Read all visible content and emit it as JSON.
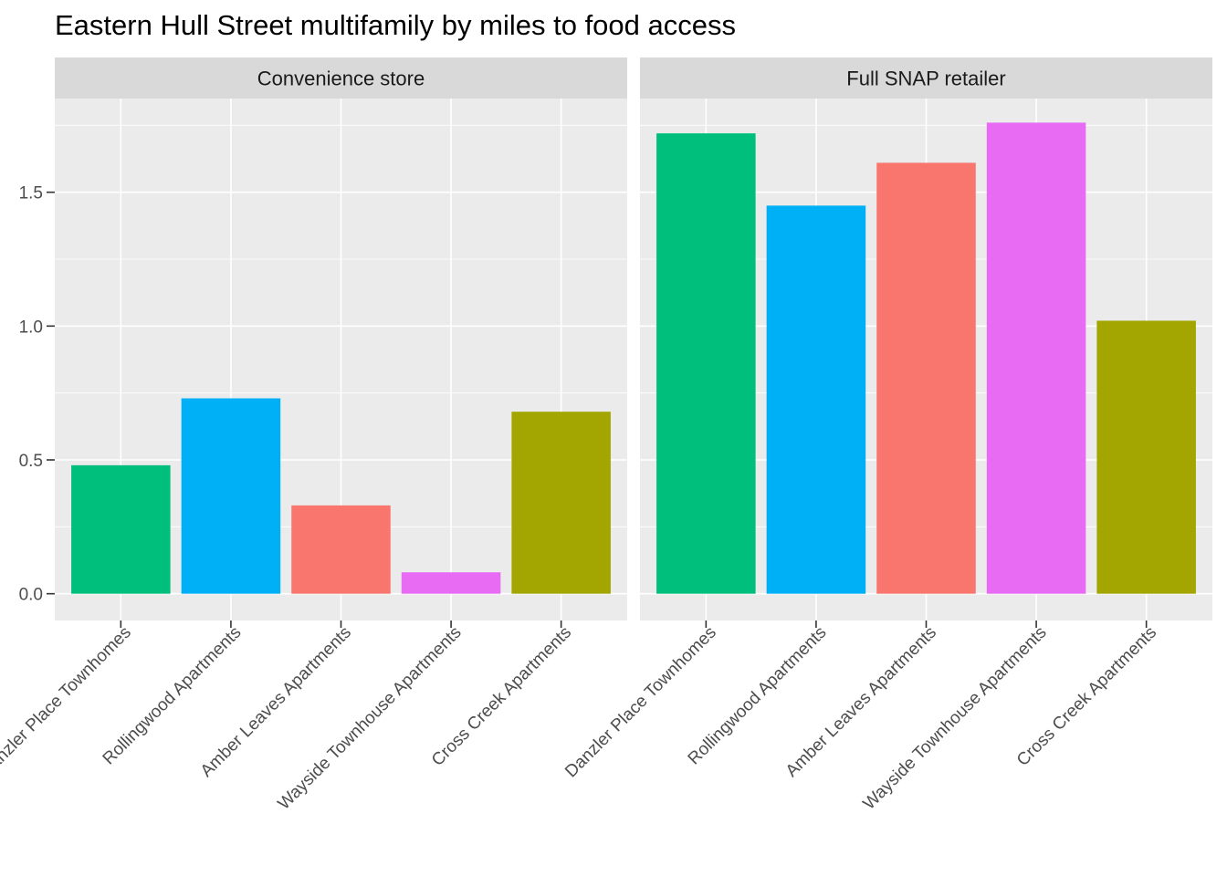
{
  "title": "Eastern Hull Street multifamily by miles to food access",
  "chart_data": [
    {
      "type": "bar",
      "panel": "Convenience store",
      "categories": [
        "Danzler Place Townhomes",
        "Rollingwood Apartments",
        "Amber Leaves Apartments",
        "Wayside Townhouse Apartments",
        "Cross Creek Apartments"
      ],
      "values": [
        0.48,
        0.73,
        0.33,
        0.08,
        0.68
      ],
      "ylim": [
        -0.1,
        1.85
      ],
      "yticks": [
        0.0,
        0.5,
        1.0,
        1.5
      ],
      "ytick_labels": [
        "0.0",
        "0.5",
        "1.0",
        "1.5"
      ],
      "xlabel": "",
      "ylabel": ""
    },
    {
      "type": "bar",
      "panel": "Full SNAP retailer",
      "categories": [
        "Danzler Place Townhomes",
        "Rollingwood Apartments",
        "Amber Leaves Apartments",
        "Wayside Townhouse Apartments",
        "Cross Creek Apartments"
      ],
      "values": [
        1.72,
        1.45,
        1.61,
        1.76,
        1.02
      ],
      "ylim": [
        -0.1,
        1.85
      ],
      "yticks": [
        0.0,
        0.5,
        1.0,
        1.5
      ],
      "ytick_labels": [
        "0.0",
        "0.5",
        "1.0",
        "1.5"
      ],
      "xlabel": "",
      "ylabel": ""
    }
  ],
  "colors": {
    "Danzler Place Townhomes": "#00BF7D",
    "Rollingwood Apartments": "#00B0F6",
    "Amber Leaves Apartments": "#F8766D",
    "Wayside Townhouse Apartments": "#E76BF3",
    "Cross Creek Apartments": "#A3A500",
    "panel_bg": "#EBEBEB",
    "strip_bg": "#D9D9D9",
    "grid": "#FFFFFF"
  },
  "legend": "none"
}
